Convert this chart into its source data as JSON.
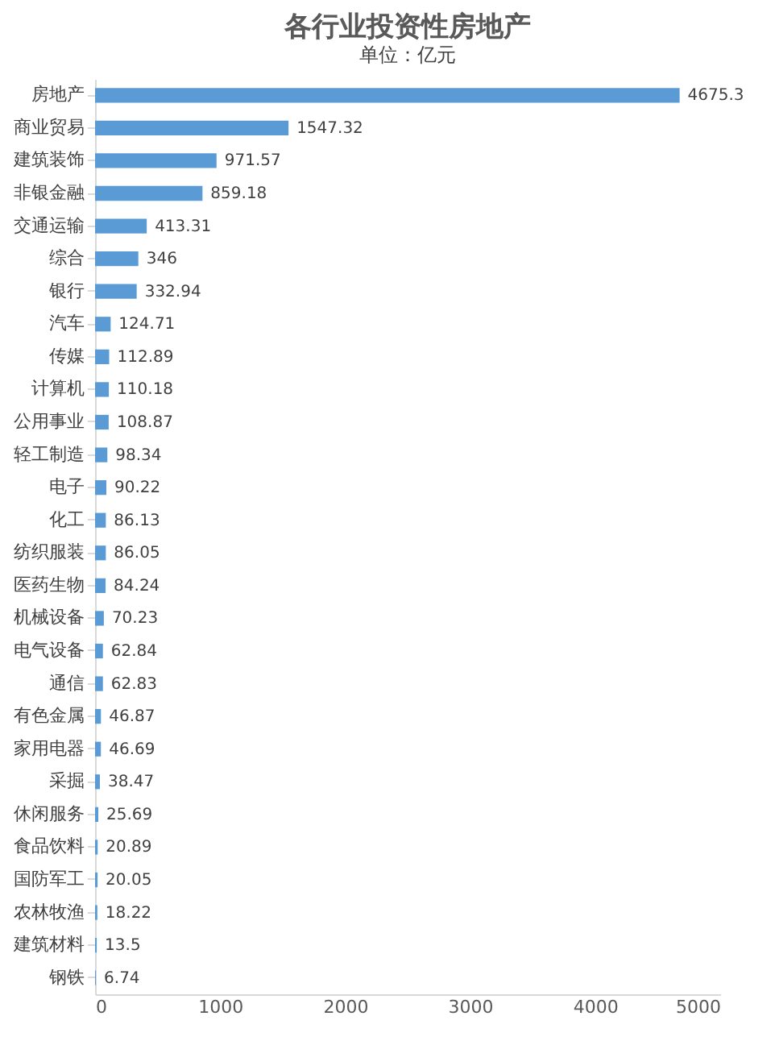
{
  "chart_data": {
    "type": "bar",
    "title": "各行业投资性房地产",
    "subtitle": "单位：亿元",
    "orientation": "horizontal",
    "categories": [
      "房地产",
      "商业贸易",
      "建筑装饰",
      "非银金融",
      "交通运输",
      "综合",
      "银行",
      "汽车",
      "传媒",
      "计算机",
      "公用事业",
      "轻工制造",
      "电子",
      "化工",
      "纺织服装",
      "医药生物",
      "机械设备",
      "电气设备",
      "通信",
      "有色金属",
      "家用电器",
      "采掘",
      "休闲服务",
      "食品饮料",
      "国防军工",
      "农林牧渔",
      "建筑材料",
      "钢铁"
    ],
    "values": [
      4675.3,
      1547.32,
      971.57,
      859.18,
      413.31,
      346,
      332.94,
      124.71,
      112.89,
      110.18,
      108.87,
      98.34,
      90.22,
      86.13,
      86.05,
      84.24,
      70.23,
      62.84,
      62.83,
      46.87,
      46.69,
      38.47,
      25.69,
      20.89,
      20.05,
      18.22,
      13.5,
      6.74
    ],
    "color": "#5b9bd5",
    "xlim": [
      0,
      5000
    ],
    "xticks": [
      0,
      1000,
      2000,
      3000,
      4000,
      5000
    ],
    "grid": false,
    "data_labels": true
  }
}
